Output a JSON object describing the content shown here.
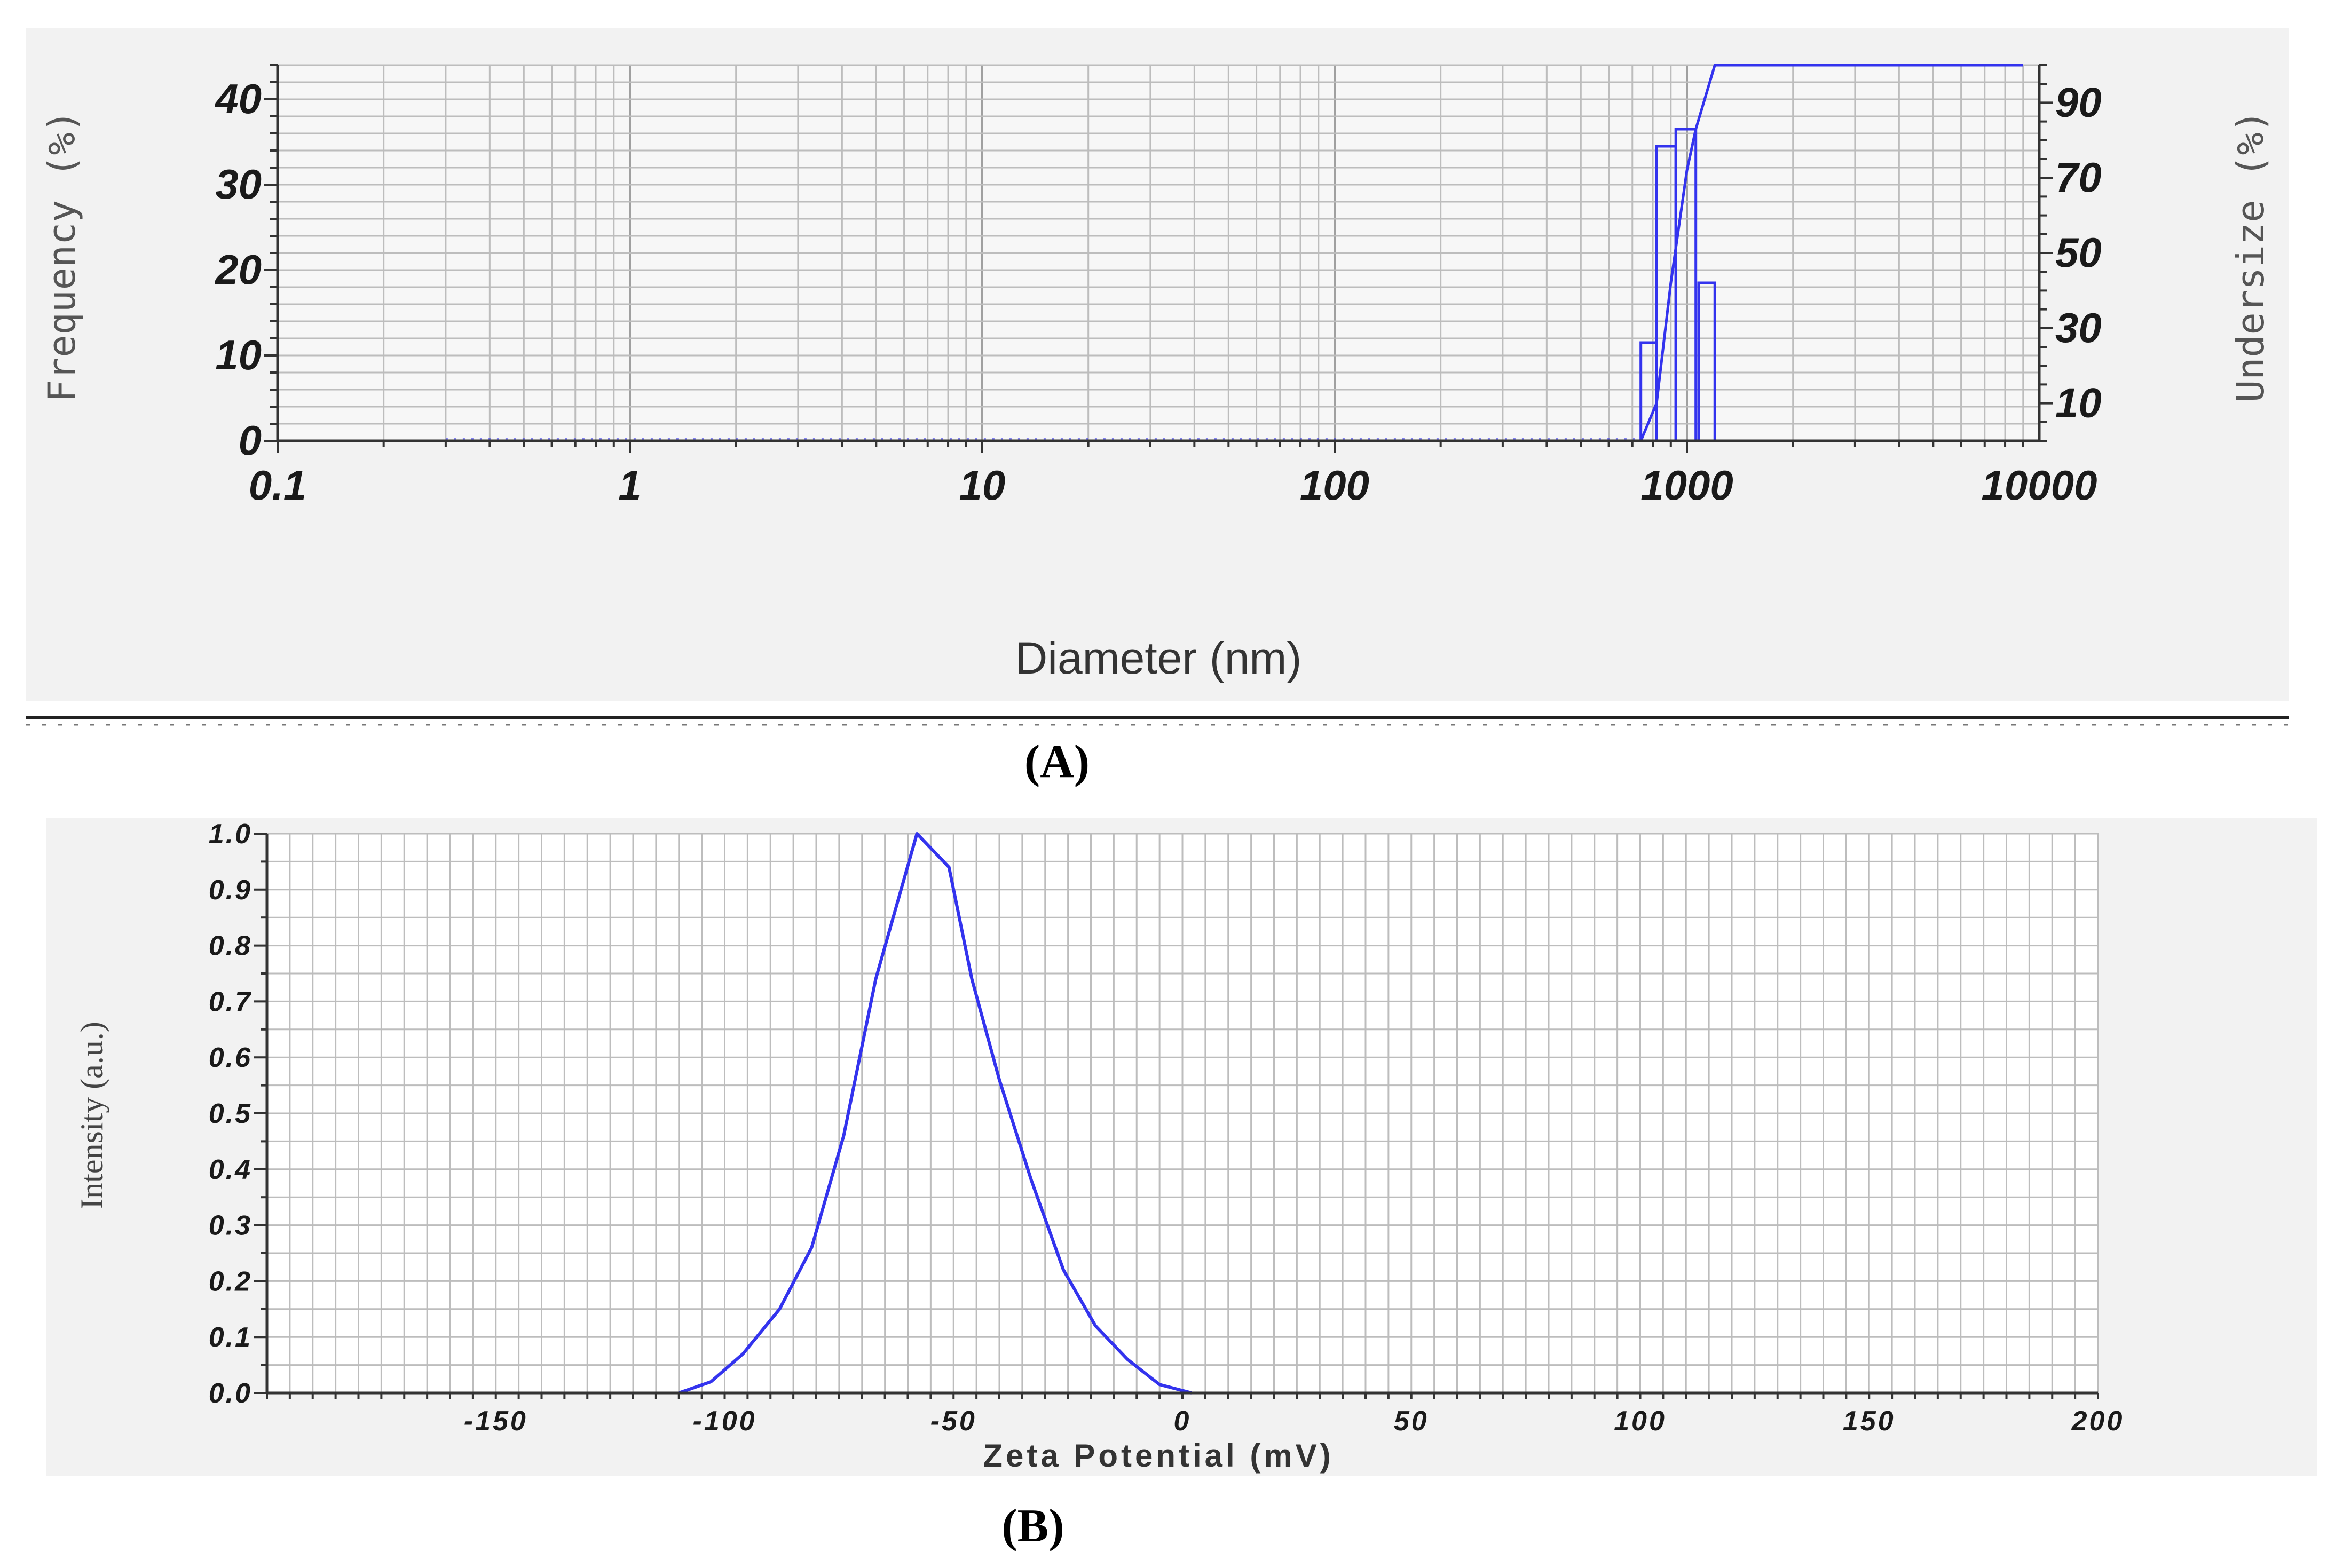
{
  "figure": {
    "panel_a_label": "(A)",
    "panel_b_label": "(B)",
    "colors": {
      "series": "#3333ee",
      "panel_bg": "#f2f2f2",
      "grid": "#bdbdbd",
      "axis": "#333333"
    }
  },
  "chart_data": [
    {
      "type": "bar",
      "panel": "(A)",
      "title": "",
      "xlabel": "Diameter (nm)",
      "ylabel": "Frequency (%)",
      "y2label": "Undersize (%)",
      "x_scale": "log",
      "xlim": [
        0.1,
        10000
      ],
      "ylim": [
        0,
        44
      ],
      "y2lim": [
        0,
        100
      ],
      "x_ticks": [
        "0.1",
        "1",
        "10",
        "100",
        "1000",
        "10000"
      ],
      "y_ticks": [
        "0",
        "10",
        "20",
        "30",
        "40"
      ],
      "y2_ticks": [
        "10",
        "30",
        "50",
        "70",
        "90"
      ],
      "grid": true,
      "series": [
        {
          "type": "bar",
          "axis": "left",
          "bins": [
            {
              "x0": 740,
              "x1": 820,
              "value": 11.5
            },
            {
              "x0": 820,
              "x1": 930,
              "value": 34.5
            },
            {
              "x0": 930,
              "x1": 1060,
              "value": 36.5
            },
            {
              "x0": 1080,
              "x1": 1200,
              "value": 18.5
            }
          ]
        },
        {
          "type": "line",
          "axis": "right",
          "points": [
            [
              0.1,
              0
            ],
            [
              740,
              0
            ],
            [
              820,
              10
            ],
            [
              900,
              42
            ],
            [
              1000,
              72
            ],
            [
              1060,
              83
            ],
            [
              1200,
              100
            ],
            [
              9000,
              100
            ]
          ]
        }
      ]
    },
    {
      "type": "line",
      "panel": "(B)",
      "title": "",
      "xlabel": "Zeta Potential (mV)",
      "ylabel": "Intensity (a.u.)",
      "xlim": [
        -200,
        200
      ],
      "ylim": [
        0,
        1.0
      ],
      "x_ticks": [
        "-150",
        "-100",
        "-50",
        "0",
        "50",
        "100",
        "150",
        "200"
      ],
      "y_ticks": [
        "0.0",
        "0.1",
        "0.2",
        "0.3",
        "0.4",
        "0.5",
        "0.6",
        "0.7",
        "0.8",
        "0.9",
        "1.0"
      ],
      "grid": true,
      "series": [
        {
          "points": [
            [
              -110,
              0
            ],
            [
              -103,
              0.02
            ],
            [
              -96,
              0.07
            ],
            [
              -88,
              0.15
            ],
            [
              -81,
              0.26
            ],
            [
              -74,
              0.46
            ],
            [
              -67,
              0.74
            ],
            [
              -58,
              1.0
            ],
            [
              -51,
              0.94
            ],
            [
              -46,
              0.74
            ],
            [
              -40,
              0.56
            ],
            [
              -33,
              0.38
            ],
            [
              -26,
              0.22
            ],
            [
              -19,
              0.12
            ],
            [
              -12,
              0.06
            ],
            [
              -5,
              0.015
            ],
            [
              2,
              0
            ]
          ]
        }
      ]
    }
  ]
}
